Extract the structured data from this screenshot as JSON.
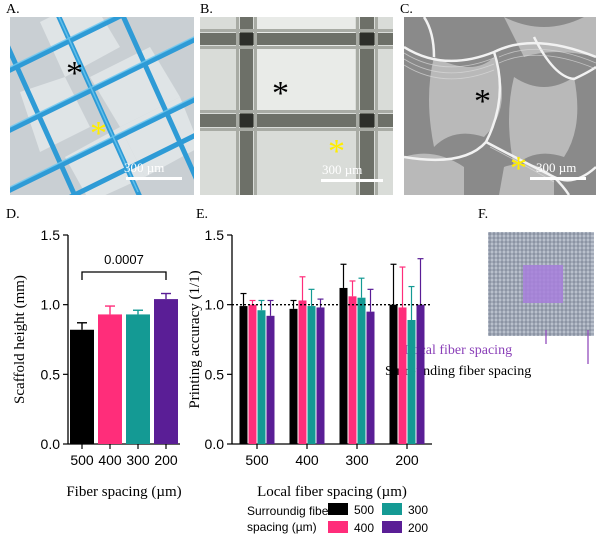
{
  "panels": {
    "a": {
      "label": "A.",
      "scale": "300 µm"
    },
    "b": {
      "label": "B.",
      "scale": "300 µm"
    },
    "c": {
      "label": "C.",
      "scale": "300 µm"
    },
    "d": {
      "label": "D."
    },
    "e": {
      "label": "E."
    },
    "f": {
      "label": "F.",
      "local_label": "Local fiber spacing",
      "surrounding_label": "Surrounding fiber spacing"
    }
  },
  "colors": {
    "500": "#000000",
    "400": "#ff2d7a",
    "300": "#149a94",
    "200": "#5a1e96",
    "asterisk_black": "#000000",
    "asterisk_yellow": "#ffee00",
    "local_label": "#8a3fb8"
  },
  "chart_data": [
    {
      "type": "bar",
      "panel": "D",
      "title": "",
      "xlabel": "Fiber spacing (µm)",
      "ylabel": "Scaffold height (mm)",
      "ylim": [
        0,
        1.5
      ],
      "yticks": [
        "0.0",
        "0.5",
        "1.0",
        "1.5"
      ],
      "categories": [
        "500",
        "400",
        "300",
        "200"
      ],
      "values": [
        0.82,
        0.93,
        0.93,
        1.04
      ],
      "errors": [
        0.05,
        0.06,
        0.03,
        0.04
      ],
      "annotation": {
        "text": "0.0007",
        "from": "500",
        "to": "200"
      }
    },
    {
      "type": "bar",
      "panel": "E",
      "title": "",
      "xlabel": "Local fiber spacing (µm)",
      "ylabel": "Printing accuracy (1/1)",
      "ylim": [
        0,
        1.5
      ],
      "yticks": [
        "0.0",
        "0.5",
        "1.0",
        "1.5"
      ],
      "reference_line": 1.0,
      "categories": [
        "500",
        "400",
        "300",
        "200"
      ],
      "legend_title": "Surroundig fiber spacing (µm)",
      "series": [
        {
          "name": "500",
          "values": [
            0.99,
            0.97,
            1.12,
            1.0
          ],
          "errors": [
            0.09,
            0.06,
            0.17,
            0.29
          ]
        },
        {
          "name": "400",
          "values": [
            1.0,
            1.03,
            1.06,
            0.98
          ],
          "errors": [
            0.03,
            0.17,
            0.11,
            0.29
          ]
        },
        {
          "name": "300",
          "values": [
            0.96,
            0.99,
            1.05,
            0.89
          ],
          "errors": [
            0.07,
            0.12,
            0.14,
            0.24
          ]
        },
        {
          "name": "200",
          "values": [
            0.92,
            0.98,
            0.95,
            1.0
          ],
          "errors": [
            0.11,
            0.06,
            0.16,
            0.33
          ]
        }
      ]
    }
  ]
}
